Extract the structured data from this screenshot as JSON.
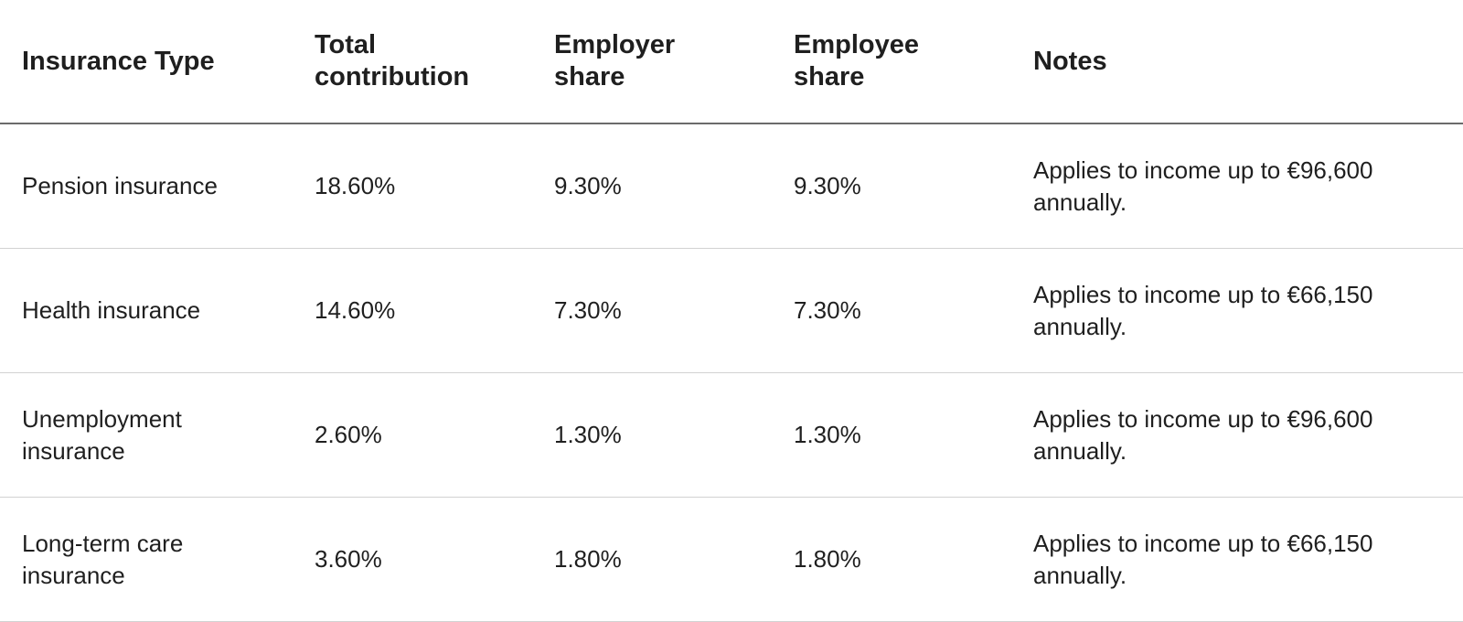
{
  "table": {
    "headers": [
      "Insurance Type",
      "Total contribution",
      "Employer share",
      "Employee share",
      "Notes"
    ],
    "rows": [
      {
        "type": "Pension insurance",
        "total": "18.60%",
        "employer": "9.30%",
        "employee": "9.30%",
        "notes": "Applies to income up to €96,600 annually."
      },
      {
        "type": "Health insurance",
        "total": "14.60%",
        "employer": "7.30%",
        "employee": "7.30%",
        "notes": "Applies to income up to €66,150 annually."
      },
      {
        "type": "Unemployment insurance",
        "total": "2.60%",
        "employer": "1.30%",
        "employee": "1.30%",
        "notes": "Applies to income up to €96,600 annually."
      },
      {
        "type": "Long-term care insurance",
        "total": "3.60%",
        "employer": "1.80%",
        "employee": "1.80%",
        "notes": "Applies to income up to €66,150 annually."
      }
    ]
  }
}
